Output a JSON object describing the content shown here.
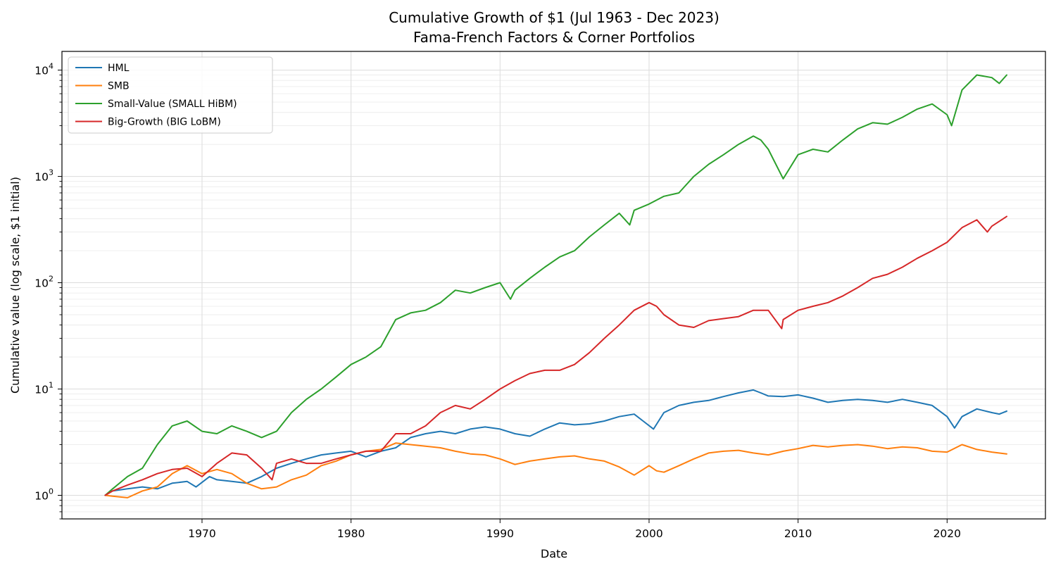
{
  "chart_data": {
    "type": "line",
    "title": "Cumulative Growth of $1 (Jul 1963 - Dec 2023)",
    "subtitle": "Fama-French Factors & Corner Portfolios",
    "xlabel": "Date",
    "ylabel": "Cumulative value (log scale, $1 initial)",
    "y_scale": "log",
    "xlim": [
      1960.6,
      2026.6
    ],
    "ylim": [
      0.6,
      15000
    ],
    "x_ticks": [
      1970,
      1980,
      1990,
      2000,
      2010,
      2020
    ],
    "x_tick_labels": [
      "1970",
      "1980",
      "1990",
      "2000",
      "2010",
      "2020"
    ],
    "y_ticks": [
      1,
      10,
      100,
      1000,
      10000
    ],
    "y_tick_labels": [
      {
        "base": "10",
        "exp": "0"
      },
      {
        "base": "10",
        "exp": "1"
      },
      {
        "base": "10",
        "exp": "2"
      },
      {
        "base": "10",
        "exp": "3"
      },
      {
        "base": "10",
        "exp": "4"
      }
    ],
    "grid": true,
    "legend_position": "top-left",
    "series": [
      {
        "name": "HML",
        "color": "#1f77b4",
        "x": [
          1963.5,
          1964,
          1965,
          1966,
          1967,
          1968,
          1969,
          1969.6,
          1970.5,
          1971,
          1972,
          1973,
          1974,
          1975,
          1976,
          1977,
          1978,
          1979,
          1980,
          1981,
          1982,
          1983,
          1984,
          1985,
          1986,
          1987,
          1988,
          1989,
          1990,
          1991,
          1992,
          1993,
          1994,
          1995,
          1996,
          1997,
          1998,
          1999,
          1999.6,
          2000.3,
          2001,
          2002,
          2003,
          2004,
          2005,
          2006,
          2007,
          2007.5,
          2008,
          2009,
          2010,
          2011,
          2012,
          2013,
          2014,
          2015,
          2016,
          2017,
          2018,
          2019,
          2020,
          2020.5,
          2021,
          2022,
          2023,
          2023.5,
          2024
        ],
        "y": [
          1.0,
          1.1,
          1.15,
          1.2,
          1.15,
          1.3,
          1.35,
          1.2,
          1.5,
          1.4,
          1.35,
          1.3,
          1.5,
          1.8,
          2.0,
          2.2,
          2.4,
          2.5,
          2.6,
          2.3,
          2.6,
          2.8,
          3.5,
          3.8,
          4.0,
          3.8,
          4.2,
          4.4,
          4.2,
          3.8,
          3.6,
          4.2,
          4.8,
          4.6,
          4.7,
          5.0,
          5.5,
          5.8,
          5.0,
          4.2,
          6.0,
          7.0,
          7.5,
          7.8,
          8.5,
          9.2,
          9.8,
          9.2,
          8.6,
          8.5,
          8.8,
          8.2,
          7.5,
          7.8,
          8.0,
          7.8,
          7.5,
          8.0,
          7.5,
          7.0,
          5.5,
          4.3,
          5.5,
          6.5,
          6.0,
          5.8,
          6.2
        ]
      },
      {
        "name": "SMB",
        "color": "#ff7f0e",
        "x": [
          1963.5,
          1964,
          1965,
          1966,
          1967,
          1968,
          1969,
          1970,
          1971,
          1972,
          1973,
          1974,
          1975,
          1976,
          1977,
          1978,
          1979,
          1980,
          1981,
          1982,
          1983,
          1984,
          1985,
          1986,
          1987,
          1988,
          1989,
          1990,
          1991,
          1992,
          1993,
          1994,
          1995,
          1996,
          1997,
          1998,
          1999,
          2000,
          2000.5,
          2001,
          2002,
          2003,
          2004,
          2005,
          2006,
          2007,
          2008,
          2009,
          2010,
          2011,
          2012,
          2013,
          2014,
          2015,
          2016,
          2017,
          2018,
          2019,
          2020,
          2021,
          2022,
          2023,
          2024
        ],
        "y": [
          1.0,
          0.98,
          0.95,
          1.1,
          1.2,
          1.6,
          1.9,
          1.6,
          1.75,
          1.6,
          1.3,
          1.15,
          1.2,
          1.4,
          1.55,
          1.9,
          2.1,
          2.4,
          2.6,
          2.7,
          3.1,
          3.0,
          2.9,
          2.8,
          2.6,
          2.45,
          2.4,
          2.2,
          1.95,
          2.1,
          2.2,
          2.3,
          2.35,
          2.2,
          2.1,
          1.85,
          1.55,
          1.9,
          1.7,
          1.65,
          1.9,
          2.2,
          2.5,
          2.6,
          2.65,
          2.5,
          2.4,
          2.6,
          2.75,
          2.95,
          2.85,
          2.95,
          3.0,
          2.9,
          2.75,
          2.85,
          2.8,
          2.6,
          2.55,
          3.0,
          2.7,
          2.55,
          2.45
        ]
      },
      {
        "name": "Small-Value (SMALL HiBM)",
        "color": "#2ca02c",
        "x": [
          1963.5,
          1964,
          1965,
          1966,
          1967,
          1968,
          1969,
          1970,
          1971,
          1972,
          1973,
          1974,
          1975,
          1976,
          1977,
          1978,
          1979,
          1980,
          1981,
          1982,
          1983,
          1984,
          1985,
          1986,
          1987,
          1988,
          1989,
          1990,
          1990.7,
          1991,
          1992,
          1993,
          1994,
          1995,
          1996,
          1997,
          1998,
          1998.7,
          1999,
          2000,
          2001,
          2002,
          2003,
          2004,
          2005,
          2006,
          2007,
          2007.5,
          2008,
          2009,
          2010,
          2011,
          2012,
          2013,
          2014,
          2015,
          2016,
          2017,
          2018,
          2019,
          2020,
          2020.3,
          2021,
          2022,
          2023,
          2023.5,
          2024
        ],
        "y": [
          1.0,
          1.15,
          1.5,
          1.8,
          3.0,
          4.5,
          5.0,
          4.0,
          3.8,
          4.5,
          4.0,
          3.5,
          4.0,
          6.0,
          8.0,
          10.0,
          13.0,
          17.0,
          20.0,
          25.0,
          45.0,
          52.0,
          55.0,
          65.0,
          85.0,
          80.0,
          90.0,
          100.0,
          70.0,
          85.0,
          110.0,
          140.0,
          175.0,
          200.0,
          270.0,
          350.0,
          450.0,
          350.0,
          480.0,
          550.0,
          650.0,
          700.0,
          1000.0,
          1300.0,
          1600.0,
          2000.0,
          2400.0,
          2200.0,
          1800.0,
          950.0,
          1600.0,
          1800.0,
          1700.0,
          2200.0,
          2800.0,
          3200.0,
          3100.0,
          3600.0,
          4300.0,
          4800.0,
          3800.0,
          3000.0,
          6500.0,
          9000.0,
          8500.0,
          7500.0,
          9000.0
        ]
      },
      {
        "name": "Big-Growth (BIG LoBM)",
        "color": "#d62728",
        "x": [
          1963.5,
          1964,
          1965,
          1966,
          1967,
          1968,
          1969,
          1970,
          1971,
          1972,
          1973,
          1974,
          1974.7,
          1975,
          1976,
          1977,
          1978,
          1979,
          1980,
          1981,
          1982,
          1983,
          1984,
          1985,
          1986,
          1987,
          1988,
          1989,
          1990,
          1991,
          1992,
          1993,
          1994,
          1995,
          1996,
          1997,
          1998,
          1999,
          2000,
          2000.5,
          2001,
          2002,
          2003,
          2004,
          2005,
          2006,
          2007,
          2008,
          2008.9,
          2009,
          2010,
          2011,
          2012,
          2013,
          2014,
          2015,
          2016,
          2017,
          2018,
          2019,
          2020,
          2021,
          2022,
          2022.7,
          2023,
          2024
        ],
        "y": [
          1.0,
          1.1,
          1.25,
          1.4,
          1.6,
          1.75,
          1.8,
          1.5,
          2.0,
          2.5,
          2.4,
          1.8,
          1.4,
          2.0,
          2.2,
          2.0,
          2.0,
          2.2,
          2.4,
          2.6,
          2.6,
          3.8,
          3.8,
          4.5,
          6.0,
          7.0,
          6.5,
          8.0,
          10.0,
          12.0,
          14.0,
          15.0,
          15.0,
          17.0,
          22.0,
          30.0,
          40.0,
          55.0,
          65.0,
          60.0,
          50.0,
          40.0,
          38.0,
          44.0,
          46.0,
          48.0,
          55.0,
          55.0,
          37.0,
          45.0,
          55.0,
          60.0,
          65.0,
          75.0,
          90.0,
          110.0,
          120.0,
          140.0,
          170.0,
          200.0,
          240.0,
          330.0,
          390.0,
          300.0,
          340.0,
          420.0
        ]
      }
    ]
  }
}
